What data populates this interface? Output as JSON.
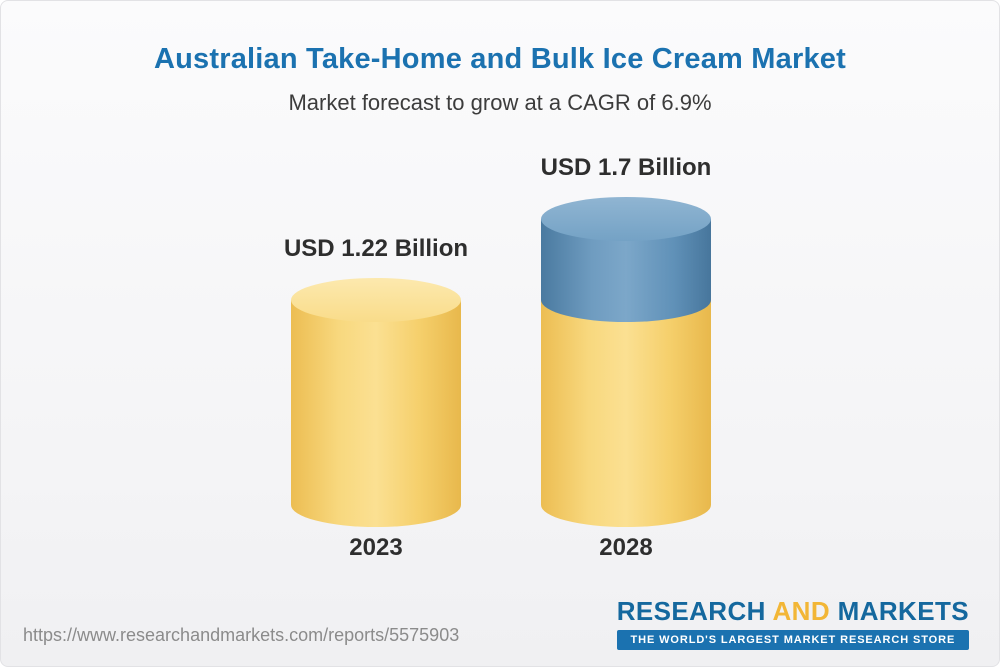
{
  "chart_data": {
    "type": "bar",
    "title": "Australian Take-Home and Bulk Ice Cream Market",
    "subtitle": "Market forecast to grow at a CAGR of 6.9%",
    "categories": [
      "2023",
      "2028"
    ],
    "values": [
      1.22,
      1.7
    ],
    "value_labels": [
      "USD 1.22 Billion",
      "USD 1.7 Billion"
    ],
    "unit": "USD Billion",
    "stacks": [
      [
        1.22
      ],
      [
        0.48,
        1.22
      ]
    ],
    "series": [
      {
        "name": "base-market",
        "values": [
          1.22,
          1.22
        ],
        "color": "#f8d87e"
      },
      {
        "name": "forecast-growth",
        "values": [
          0,
          0.48
        ],
        "color": "#6f9cc0"
      }
    ],
    "ylim": [
      0,
      2
    ],
    "grid": false,
    "legend": "none",
    "colors": {
      "bar_yellow": "#f8d87e",
      "bar_blue": "#6f9cc0",
      "title_blue": "#1b72b0",
      "label_dark": "#2e2e2e"
    }
  },
  "footer": {
    "url": "https://www.researchandmarkets.com/reports/5575903",
    "logo": {
      "word1": "RESEARCH",
      "word2": "AND",
      "word3": "MARKETS",
      "tagline": "THE WORLD'S LARGEST MARKET RESEARCH STORE",
      "brand_blue": "#15689e",
      "brand_gold": "#f2b636"
    }
  }
}
